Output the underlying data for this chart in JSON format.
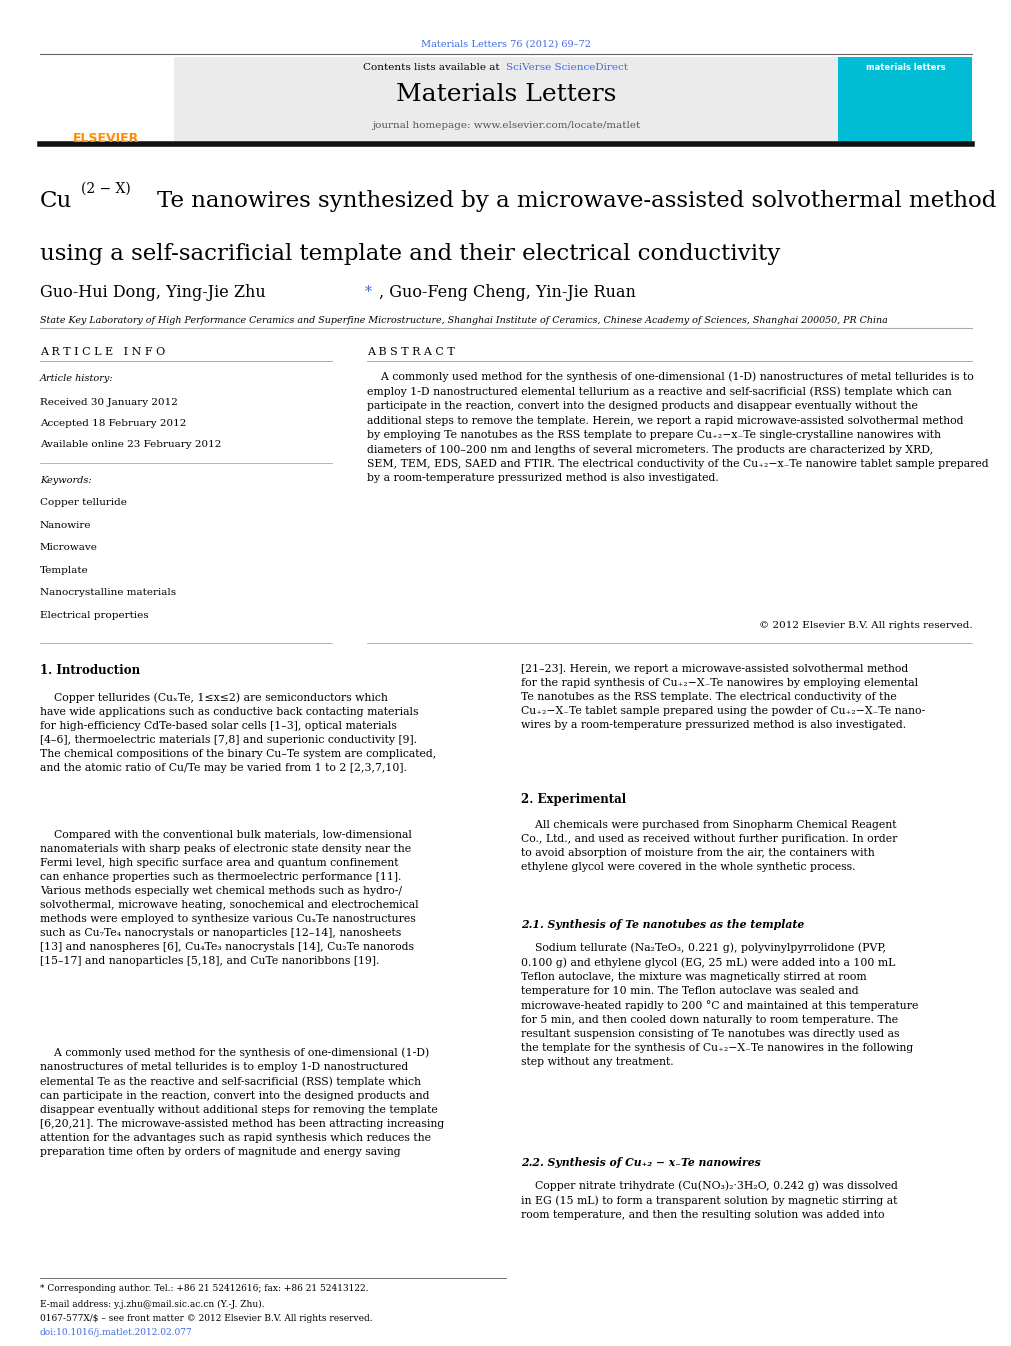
{
  "page_width": 9.92,
  "page_height": 13.23,
  "background_color": "#ffffff",
  "journal_ref": "Materials Letters 76 (2012) 69–72",
  "journal_ref_color": "#4169e1",
  "journal_name": "Materials Letters",
  "journal_homepage": "journal homepage: www.elsevier.com/locate/matlet",
  "article_info_label": "A R T I C L E   I N F O",
  "abstract_label": "A B S T R A C T",
  "article_history_label": "Article history:",
  "received": "Received 30 January 2012",
  "accepted": "Accepted 18 February 2012",
  "available": "Available online 23 February 2012",
  "keywords_label": "Keywords:",
  "keywords": [
    "Copper telluride",
    "Nanowire",
    "Microwave",
    "Template",
    "Nanocrystalline materials",
    "Electrical properties"
  ],
  "copyright": "© 2012 Elsevier B.V. All rights reserved.",
  "affiliation": "State Key Laboratory of High Performance Ceramics and Superfine Microstructure, Shanghai Institute of Ceramics, Chinese Academy of Sciences, Shanghai 200050, PR China",
  "intro_heading": "1. Introduction",
  "experimental_heading": "2. Experimental",
  "synthesis_te_heading": "2.1. Synthesis of Te nanotubes as the template",
  "synthesis_cu_heading": "2.2. Synthesis of Cu₊₂ − x₋Te nanowires",
  "footnote1": "* Corresponding author. Tel.: +86 21 52412616; fax: +86 21 52413122.",
  "footnote2": "E-mail address: y.j.zhu@mail.sic.ac.cn (Y.-J. Zhu).",
  "footnote3": "0167-577X/$ – see front matter © 2012 Elsevier B.V. All rights reserved.",
  "footnote4": "doi:10.1016/j.matlet.2012.02.077"
}
